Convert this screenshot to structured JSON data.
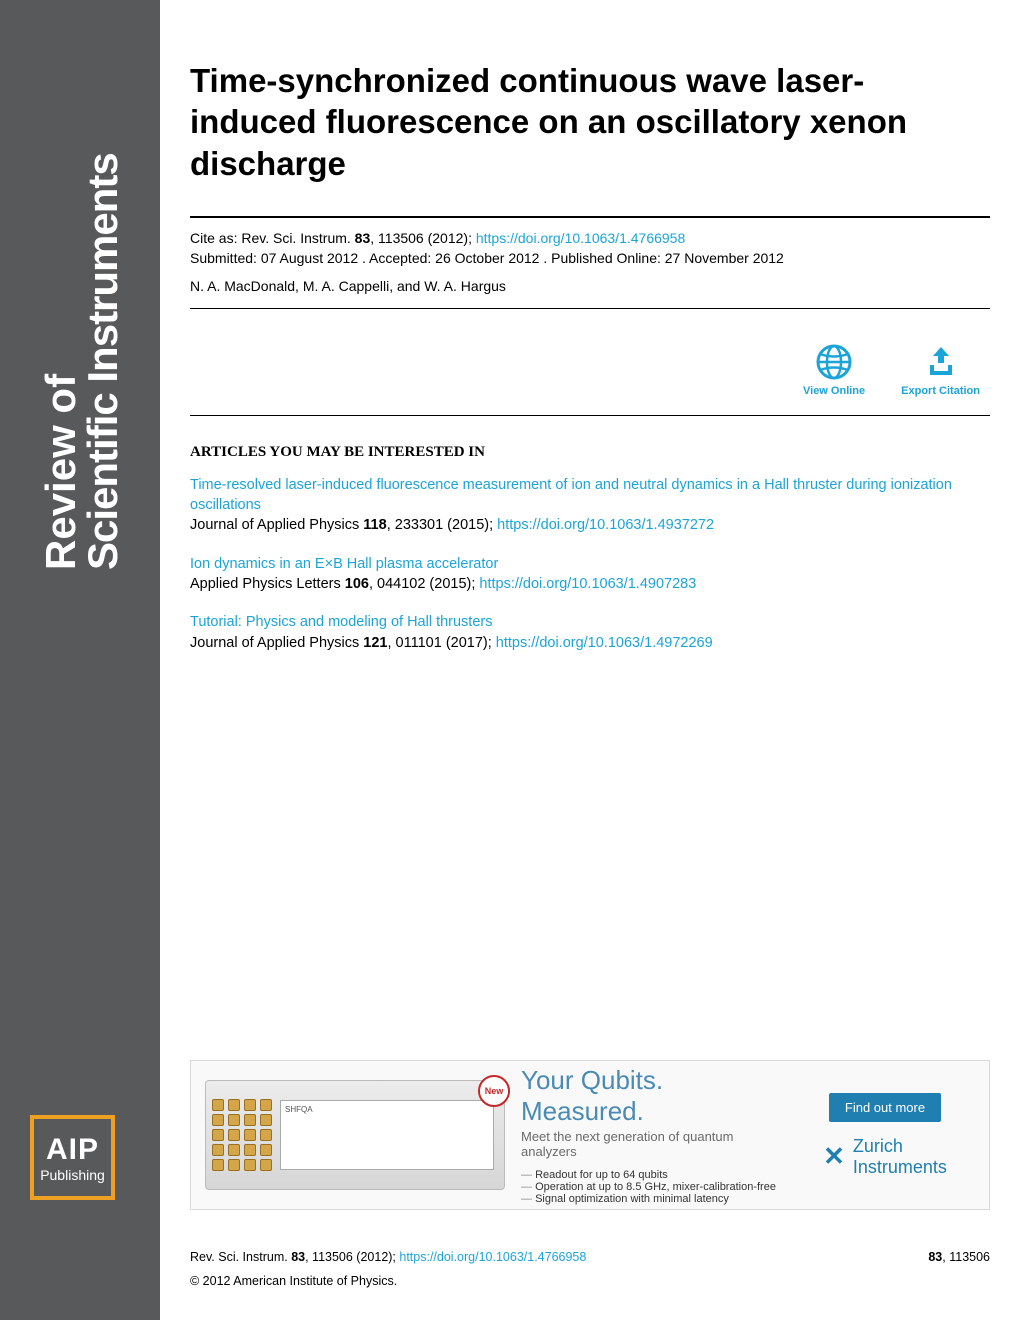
{
  "colors": {
    "sidebar_bg": "#58595b",
    "link": "#1ca4d8",
    "aip_border": "#f0a020",
    "ad_headline": "#4a8bb5",
    "ad_button": "#1f7fb0"
  },
  "journal": {
    "line1": "Review of",
    "line2": "Scientific Instruments"
  },
  "publisher": {
    "name": "AIP",
    "sub": "Publishing"
  },
  "article": {
    "title": "Time-synchronized continuous wave laser-induced fluorescence on an oscillatory xenon discharge",
    "cite_prefix": "Cite as: Rev. Sci. Instrum. ",
    "volume": "83",
    "pages": ", 113506 (2012); ",
    "doi": "https://doi.org/10.1063/1.4766958",
    "dates": "Submitted: 07 August 2012 . Accepted: 26 October 2012 . Published Online: 27 November 2012",
    "authors": "N. A. MacDonald, M. A. Cappelli, and W. A. Hargus"
  },
  "actions": {
    "view": "View Online",
    "export": "Export Citation"
  },
  "related_heading": "ARTICLES YOU MAY BE INTERESTED IN",
  "related": [
    {
      "title": "Time-resolved laser-induced fluorescence measurement of ion and neutral dynamics in a Hall thruster during ionization oscillations",
      "source_pre": "Journal of Applied Physics ",
      "vol": "118",
      "source_post": ", 233301 (2015); ",
      "doi": "https://doi.org/10.1063/1.4937272"
    },
    {
      "title": "Ion dynamics in an E×B Hall plasma accelerator",
      "source_pre": "Applied Physics Letters ",
      "vol": "106",
      "source_post": ", 044102 (2015); ",
      "doi": "https://doi.org/10.1063/1.4907283"
    },
    {
      "title": " Tutorial: Physics and modeling of Hall thrusters",
      "source_pre": "Journal of Applied Physics ",
      "vol": "121",
      "source_post": ", 011101 (2017); ",
      "doi": "https://doi.org/10.1063/1.4972269"
    }
  ],
  "ad": {
    "new_badge": "New",
    "device_label": "SHFQA",
    "headline": "Your Qubits. Measured.",
    "sub": "Meet the next generation of quantum analyzers",
    "bullets": [
      "Readout for up to 64 qubits",
      "Operation at up to 8.5 GHz, mixer-calibration-free",
      "Signal optimization with minimal latency"
    ],
    "button": "Find out more",
    "company_line1": "Zurich",
    "company_line2": "Instruments"
  },
  "footer": {
    "cite_pre": "Rev. Sci. Instrum. ",
    "vol": "83",
    "cite_post": ", 113506 (2012); ",
    "doi": "https://doi.org/10.1063/1.4766958",
    "right_vol": "83",
    "right_issue": ", 113506",
    "copyright": "© 2012 American Institute of Physics."
  }
}
